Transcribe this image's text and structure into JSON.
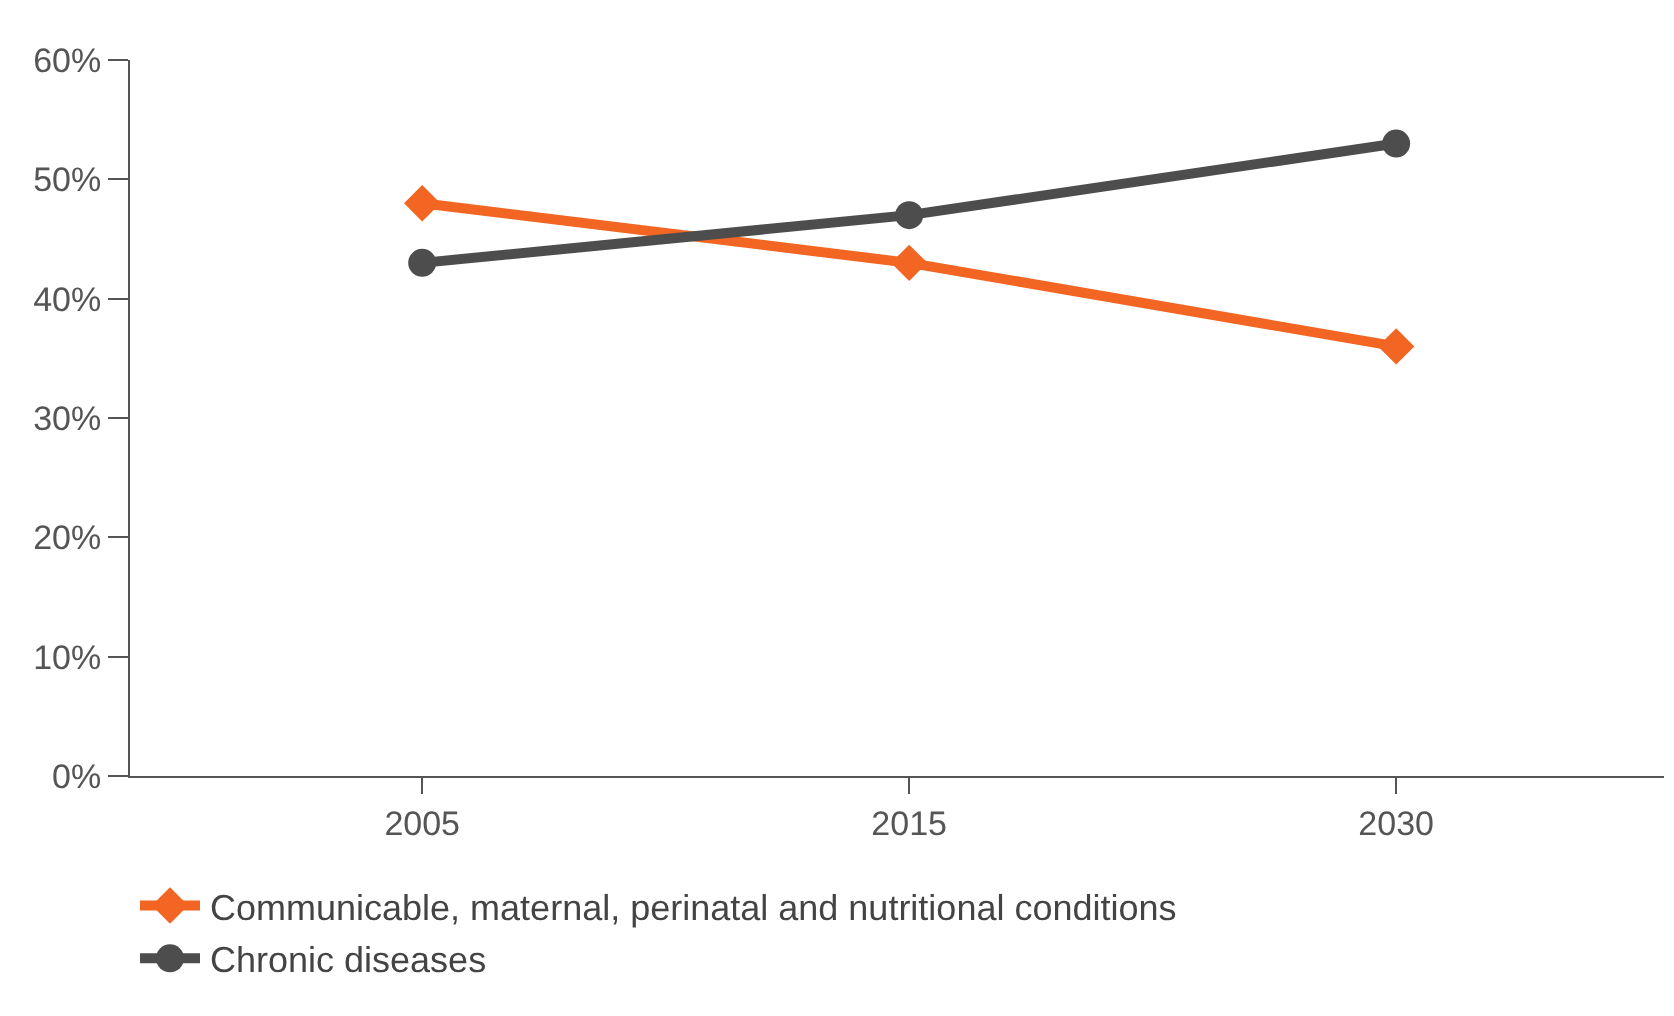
{
  "chart_data": {
    "type": "line",
    "categories": [
      "2005",
      "2015",
      "2030"
    ],
    "series": [
      {
        "name": "Communicable, maternal, perinatal and nutritional conditions",
        "color": "#f26522",
        "marker": "diamond",
        "values": [
          48,
          43,
          36
        ]
      },
      {
        "name": "Chronic diseases",
        "color": "#4d4d4d",
        "marker": "circle",
        "values": [
          43,
          47,
          53
        ]
      }
    ],
    "ylim": [
      0,
      60
    ],
    "yticks": [
      {
        "value": 0,
        "label": "0%"
      },
      {
        "value": 10,
        "label": "10%"
      },
      {
        "value": 20,
        "label": "20%"
      },
      {
        "value": 30,
        "label": "30%"
      },
      {
        "value": 40,
        "label": "40%"
      },
      {
        "value": 50,
        "label": "50%"
      },
      {
        "value": 60,
        "label": "60%"
      }
    ],
    "legend": "bottom",
    "line_style": "solid"
  }
}
